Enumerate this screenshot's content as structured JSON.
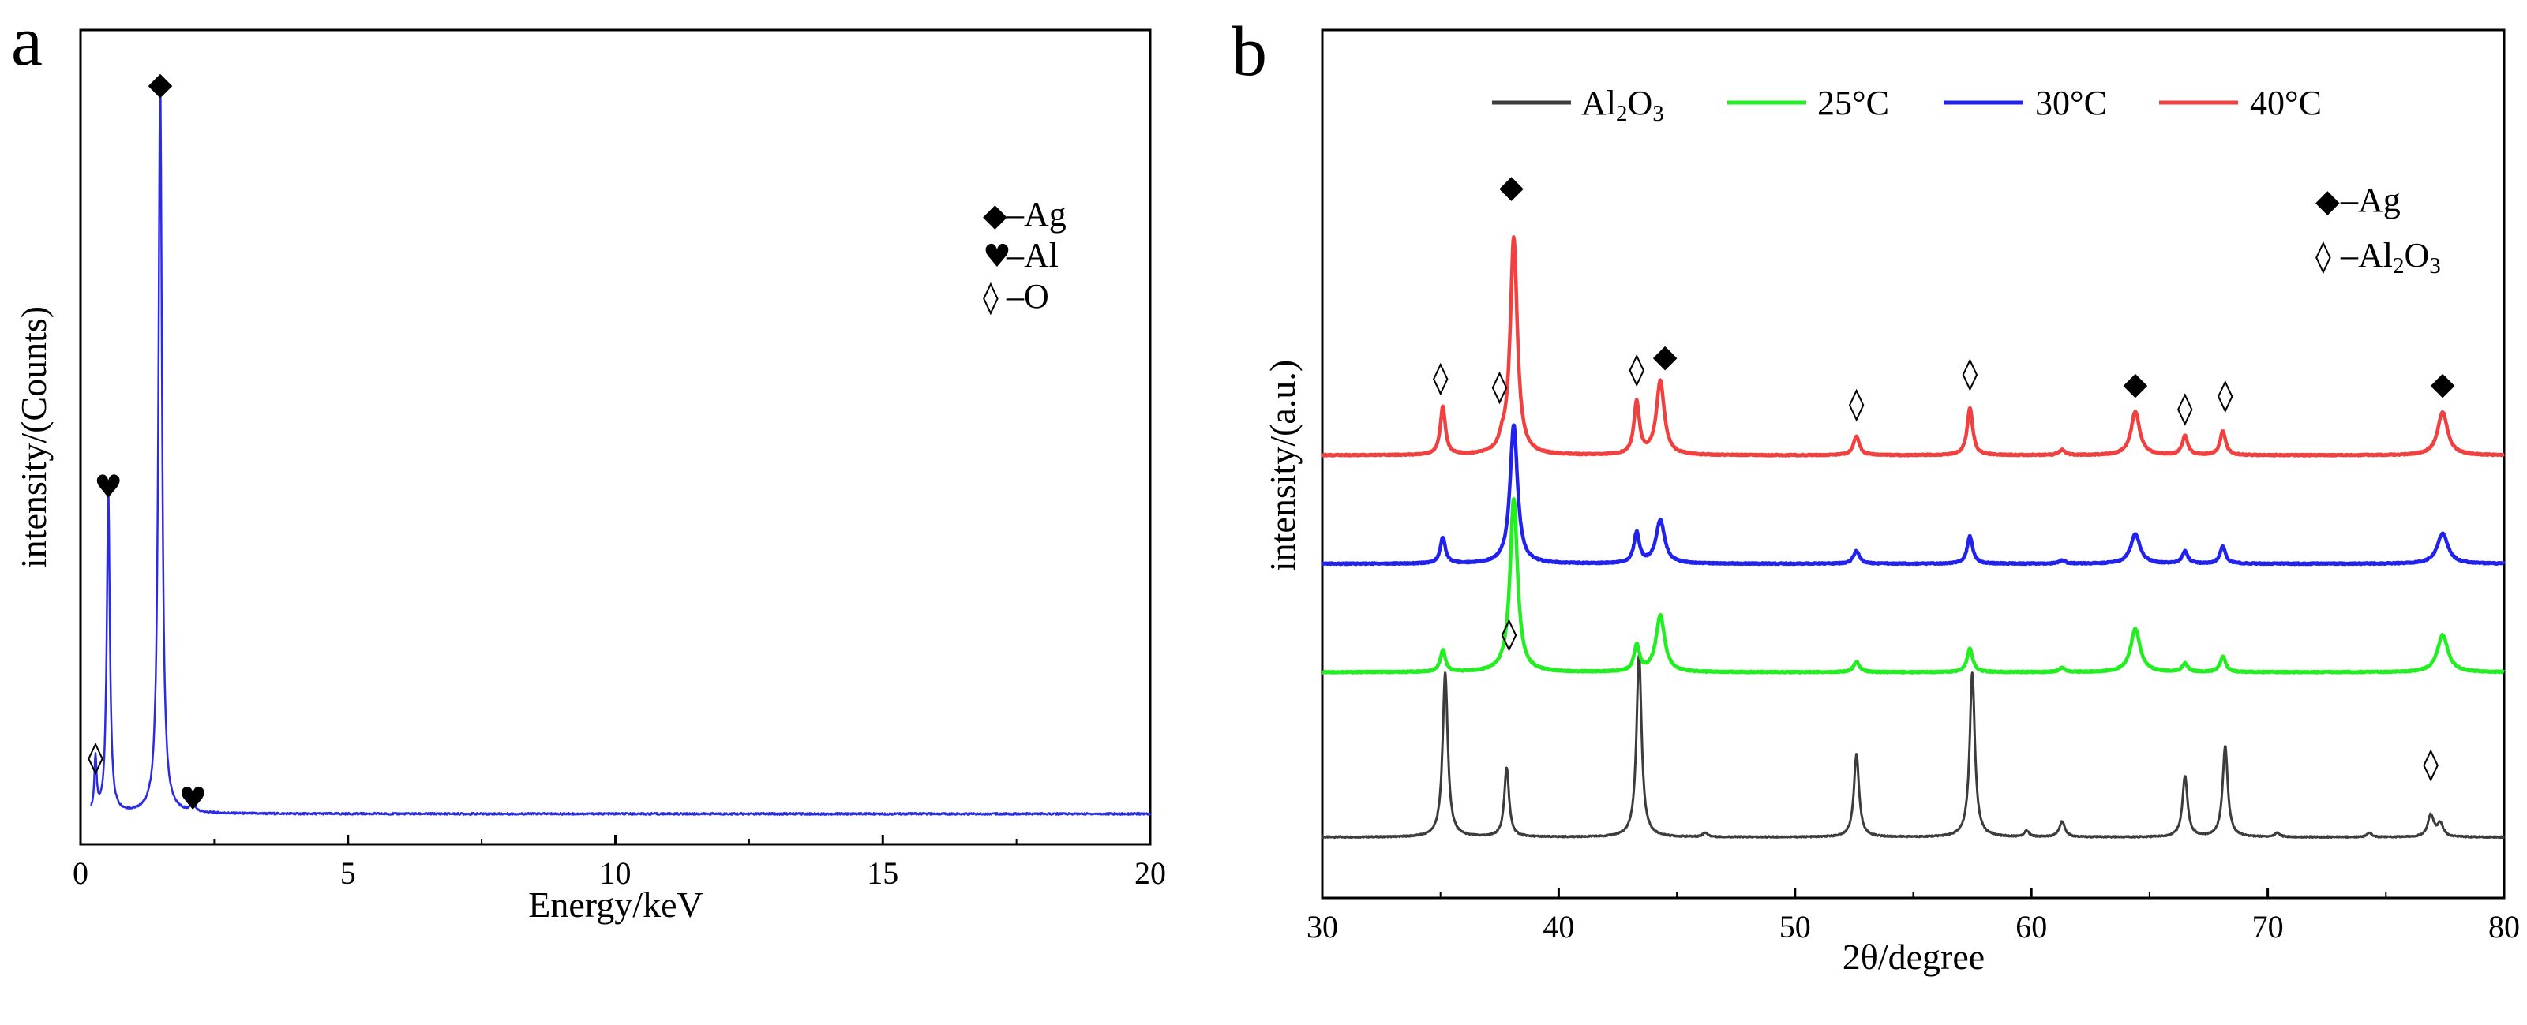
{
  "chart_data": [
    {
      "panel_label": "a",
      "type": "line",
      "xlabel": "Energy/keV",
      "ylabel": "intensity/(Counts)",
      "xlim": [
        0,
        20
      ],
      "ylim": [
        0,
        1.07
      ],
      "xticks": [
        0,
        5,
        10,
        15,
        20
      ],
      "tick_labels": [
        "0",
        "5",
        "10",
        "15",
        "20"
      ],
      "color": "#2b2be6",
      "baseline": 0.04,
      "peaks": [
        {
          "x": 0.28,
          "h": 0.07,
          "w": 0.025
        },
        {
          "x": 0.52,
          "h": 0.42,
          "w": 0.035
        },
        {
          "x": 1.49,
          "h": 0.96,
          "w": 0.04
        },
        {
          "x": 2.1,
          "h": 0.012,
          "w": 0.05
        }
      ],
      "markers": [
        {
          "x": 0.28,
          "y": 0.115,
          "symbol": "◊"
        },
        {
          "x": 0.52,
          "y": 0.47,
          "symbol": "♥"
        },
        {
          "x": 1.49,
          "y": 1.0,
          "symbol": "◆"
        },
        {
          "x": 2.1,
          "y": 0.06,
          "symbol": "♥"
        }
      ],
      "legend": [
        {
          "symbol": "◆",
          "text": "–Ag"
        },
        {
          "symbol": "♥",
          "text": "–Al"
        },
        {
          "symbol": "◊",
          "text": "–O"
        }
      ]
    },
    {
      "panel_label": "b",
      "type": "line",
      "xlabel": "2θ/degree",
      "ylabel": "intensity/(a.u.)",
      "xlim": [
        30,
        80
      ],
      "ylim": [
        0,
        1.0
      ],
      "xticks": [
        30,
        40,
        50,
        60,
        70,
        80
      ],
      "tick_labels": [
        "30",
        "40",
        "50",
        "60",
        "70",
        "80"
      ],
      "series": [
        {
          "name": "Al2O3",
          "label_main": "Al",
          "label_sub1": "2",
          "label_mid": "O",
          "label_sub2": "3",
          "color": "#3c3c3c",
          "offset": 0.07,
          "peaks": [
            {
              "x": 35.2,
              "h": 0.19,
              "w": 0.13
            },
            {
              "x": 37.8,
              "h": 0.08,
              "w": 0.12
            },
            {
              "x": 43.4,
              "h": 0.21,
              "w": 0.13
            },
            {
              "x": 46.2,
              "h": 0.005,
              "w": 0.12
            },
            {
              "x": 52.6,
              "h": 0.095,
              "w": 0.13
            },
            {
              "x": 57.5,
              "h": 0.19,
              "w": 0.13
            },
            {
              "x": 59.8,
              "h": 0.007,
              "w": 0.12
            },
            {
              "x": 61.3,
              "h": 0.018,
              "w": 0.14
            },
            {
              "x": 66.5,
              "h": 0.07,
              "w": 0.13
            },
            {
              "x": 68.2,
              "h": 0.105,
              "w": 0.13
            },
            {
              "x": 70.4,
              "h": 0.005,
              "w": 0.12
            },
            {
              "x": 74.3,
              "h": 0.005,
              "w": 0.12
            },
            {
              "x": 76.9,
              "h": 0.025,
              "w": 0.15
            },
            {
              "x": 77.3,
              "h": 0.015,
              "w": 0.15
            }
          ]
        },
        {
          "name": "25°C",
          "color": "#22ee22",
          "offset": 0.26,
          "peaks": [
            {
              "x": 35.1,
              "h": 0.025,
              "w": 0.13
            },
            {
              "x": 38.1,
              "h": 0.2,
              "w": 0.19
            },
            {
              "x": 43.3,
              "h": 0.03,
              "w": 0.14
            },
            {
              "x": 44.3,
              "h": 0.065,
              "w": 0.22
            },
            {
              "x": 52.6,
              "h": 0.012,
              "w": 0.15
            },
            {
              "x": 57.4,
              "h": 0.028,
              "w": 0.14
            },
            {
              "x": 61.3,
              "h": 0.005,
              "w": 0.15
            },
            {
              "x": 64.4,
              "h": 0.05,
              "w": 0.24
            },
            {
              "x": 66.5,
              "h": 0.01,
              "w": 0.14
            },
            {
              "x": 68.1,
              "h": 0.018,
              "w": 0.14
            },
            {
              "x": 77.4,
              "h": 0.043,
              "w": 0.27
            }
          ]
        },
        {
          "name": "30°C",
          "color": "#2222ee",
          "offset": 0.385,
          "peaks": [
            {
              "x": 35.1,
              "h": 0.03,
              "w": 0.13
            },
            {
              "x": 38.1,
              "h": 0.16,
              "w": 0.19
            },
            {
              "x": 43.3,
              "h": 0.035,
              "w": 0.14
            },
            {
              "x": 44.3,
              "h": 0.05,
              "w": 0.22
            },
            {
              "x": 52.6,
              "h": 0.015,
              "w": 0.15
            },
            {
              "x": 57.4,
              "h": 0.032,
              "w": 0.14
            },
            {
              "x": 61.3,
              "h": 0.004,
              "w": 0.15
            },
            {
              "x": 64.4,
              "h": 0.034,
              "w": 0.24
            },
            {
              "x": 66.5,
              "h": 0.014,
              "w": 0.14
            },
            {
              "x": 68.1,
              "h": 0.02,
              "w": 0.14
            },
            {
              "x": 77.4,
              "h": 0.035,
              "w": 0.27
            }
          ]
        },
        {
          "name": "40°C",
          "color": "#f04040",
          "offset": 0.51,
          "peaks": [
            {
              "x": 35.1,
              "h": 0.055,
              "w": 0.13
            },
            {
              "x": 37.6,
              "h": 0.01,
              "w": 0.15
            },
            {
              "x": 38.1,
              "h": 0.25,
              "w": 0.18
            },
            {
              "x": 43.3,
              "h": 0.06,
              "w": 0.14
            },
            {
              "x": 44.3,
              "h": 0.085,
              "w": 0.2
            },
            {
              "x": 52.6,
              "h": 0.022,
              "w": 0.15
            },
            {
              "x": 57.4,
              "h": 0.055,
              "w": 0.14
            },
            {
              "x": 61.3,
              "h": 0.006,
              "w": 0.15
            },
            {
              "x": 64.4,
              "h": 0.05,
              "w": 0.22
            },
            {
              "x": 66.5,
              "h": 0.022,
              "w": 0.14
            },
            {
              "x": 68.1,
              "h": 0.028,
              "w": 0.14
            },
            {
              "x": 77.4,
              "h": 0.05,
              "w": 0.25
            }
          ]
        }
      ],
      "markers": [
        {
          "x": 38.0,
          "y": 0.82,
          "symbol": "◆"
        },
        {
          "x": 44.5,
          "y": 0.625,
          "symbol": "◆"
        },
        {
          "x": 64.4,
          "y": 0.593,
          "symbol": "◆"
        },
        {
          "x": 77.4,
          "y": 0.593,
          "symbol": "◆"
        },
        {
          "x": 35.0,
          "y": 0.6,
          "symbol": "◊"
        },
        {
          "x": 37.5,
          "y": 0.59,
          "symbol": "◊"
        },
        {
          "x": 43.3,
          "y": 0.61,
          "symbol": "◊"
        },
        {
          "x": 52.6,
          "y": 0.57,
          "symbol": "◊"
        },
        {
          "x": 57.4,
          "y": 0.605,
          "symbol": "◊"
        },
        {
          "x": 66.5,
          "y": 0.565,
          "symbol": "◊"
        },
        {
          "x": 68.2,
          "y": 0.58,
          "symbol": "◊"
        },
        {
          "x": 37.9,
          "y": 0.305,
          "symbol": "◊"
        },
        {
          "x": 76.9,
          "y": 0.155,
          "symbol": "◊"
        }
      ],
      "legend": [
        {
          "symbol": "◆",
          "text": "–Ag"
        },
        {
          "symbol": "◊",
          "text": "–Al",
          "sub1": "2",
          "mid": "O",
          "sub2": "3"
        }
      ]
    }
  ]
}
